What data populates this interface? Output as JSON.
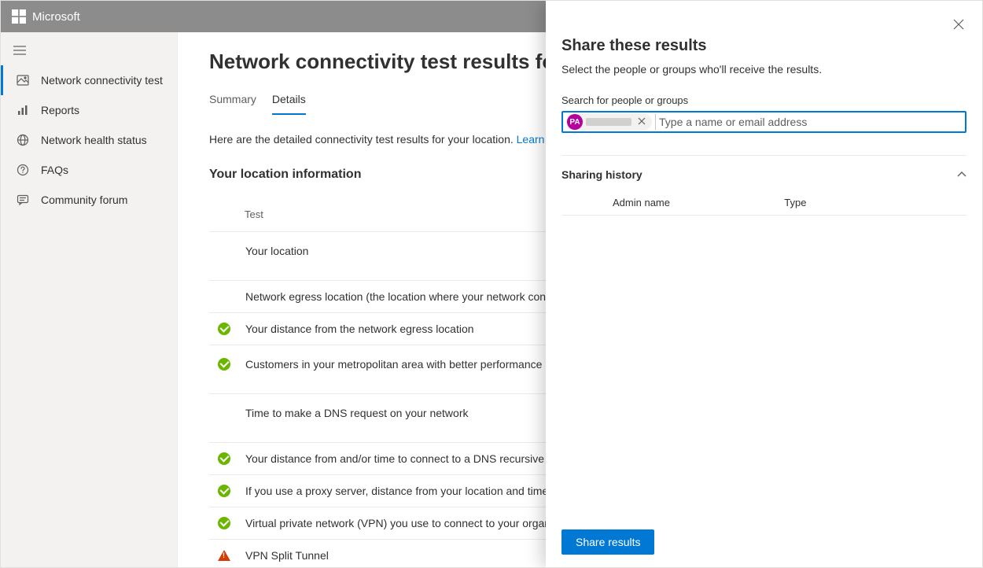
{
  "brand": "Microsoft",
  "sidebar": {
    "items": [
      {
        "label": "Network connectivity test",
        "icon": "image-icon",
        "selected": true
      },
      {
        "label": "Reports",
        "icon": "bars-icon",
        "selected": false
      },
      {
        "label": "Network health status",
        "icon": "globe-icon",
        "selected": false
      },
      {
        "label": "FAQs",
        "icon": "question-icon",
        "selected": false
      },
      {
        "label": "Community forum",
        "icon": "chat-icon",
        "selected": false
      }
    ]
  },
  "page": {
    "title": "Network connectivity test results for your location",
    "tabs": [
      {
        "label": "Summary",
        "active": false
      },
      {
        "label": "Details",
        "active": true
      }
    ],
    "intro_text": "Here are the detailed connectivity test results for your location. ",
    "intro_link": "Learn about the tests we run.",
    "section": "Your location information",
    "table_header": "Test",
    "rows": [
      {
        "status": "",
        "text": "Your location",
        "tall": true
      },
      {
        "status": "",
        "text": "Network egress location (the location where your network connects to your ISP)",
        "tall": false
      },
      {
        "status": "ok",
        "text": "Your distance from the network egress location",
        "tall": false
      },
      {
        "status": "ok",
        "text": "Customers in your metropolitan area with better performance",
        "tall": true
      },
      {
        "status": "",
        "text": "Time to make a DNS request on your network",
        "tall": true
      },
      {
        "status": "ok",
        "text": "Your distance from and/or time to connect to a DNS recursive resolver",
        "tall": false
      },
      {
        "status": "ok",
        "text": "If you use a proxy server, distance from your location and time to connect to it",
        "tall": false
      },
      {
        "status": "ok",
        "text": "Virtual private network (VPN) you use to connect to your organization",
        "tall": false
      },
      {
        "status": "warn",
        "text": "VPN Split Tunnel",
        "tall": false
      }
    ]
  },
  "panel": {
    "title": "Share these results",
    "sub": "Select the people or groups who'll receive the results.",
    "search_label": "Search for people or groups",
    "search_placeholder": "Type a name or email address",
    "chip_initials": "PA",
    "history_title": "Sharing history",
    "col_admin": "Admin name",
    "col_type": "Type",
    "share_button": "Share results"
  },
  "colors": {
    "accent": "#0078d4",
    "success": "#6bb700",
    "warn": "#d83b01",
    "topbar": "#8c8c8c",
    "sidebar_bg": "#f3f2f1"
  }
}
